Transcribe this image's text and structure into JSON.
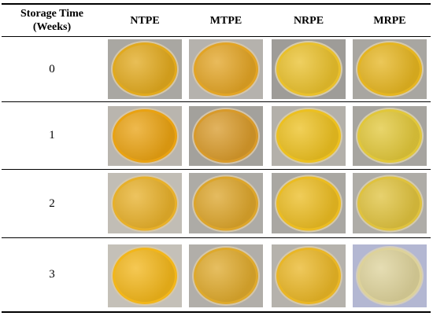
{
  "table": {
    "header_time_line1": "Storage Time",
    "header_time_line2": "(Weeks)",
    "columns": [
      "NTPE",
      "MTPE",
      "NRPE",
      "MRPE"
    ],
    "rows": [
      {
        "week": "0",
        "photos": [
          {
            "name": "ntpe-week0-photo",
            "bg": "#a9a7a2",
            "powder": "#e1a91e"
          },
          {
            "name": "mtpe-week0-photo",
            "bg": "#b5b2ad",
            "powder": "#e2a425"
          },
          {
            "name": "nrpe-week0-photo",
            "bg": "#9e9c98",
            "powder": "#e9c02c"
          },
          {
            "name": "mrpe-week0-photo",
            "bg": "#a8a6a1",
            "powder": "#e5b521"
          }
        ]
      },
      {
        "week": "1",
        "photos": [
          {
            "name": "ntpe-week1-photo",
            "bg": "#b9b5ae",
            "powder": "#e9a212"
          },
          {
            "name": "mtpe-week1-photo",
            "bg": "#a3a19c",
            "powder": "#d89a2a"
          },
          {
            "name": "nrpe-week1-photo",
            "bg": "#b3b0aa",
            "powder": "#ecc020"
          },
          {
            "name": "mrpe-week1-photo",
            "bg": "#a6a49f",
            "powder": "#e1c73a"
          }
        ]
      },
      {
        "week": "2",
        "photos": [
          {
            "name": "ntpe-week2-photo",
            "bg": "#c1bdb5",
            "powder": "#e7b02a"
          },
          {
            "name": "mtpe-week2-photo",
            "bg": "#adaba6",
            "powder": "#dca52b"
          },
          {
            "name": "nrpe-week2-photo",
            "bg": "#a9a7a2",
            "powder": "#ebbc22"
          },
          {
            "name": "mrpe-week2-photo",
            "bg": "#aeaca7",
            "powder": "#dfc23e"
          }
        ]
      },
      {
        "week": "3",
        "photos": [
          {
            "name": "ntpe-week3-photo",
            "bg": "#c4c0b8",
            "powder": "#f2b61a"
          },
          {
            "name": "mtpe-week3-photo",
            "bg": "#b1aea9",
            "powder": "#dea92c"
          },
          {
            "name": "nrpe-week3-photo",
            "bg": "#b5b2ac",
            "powder": "#e9b626"
          },
          {
            "name": "mrpe-week3-photo",
            "bg": "#b3b7d2",
            "powder": "#ddd29a"
          }
        ]
      }
    ]
  }
}
